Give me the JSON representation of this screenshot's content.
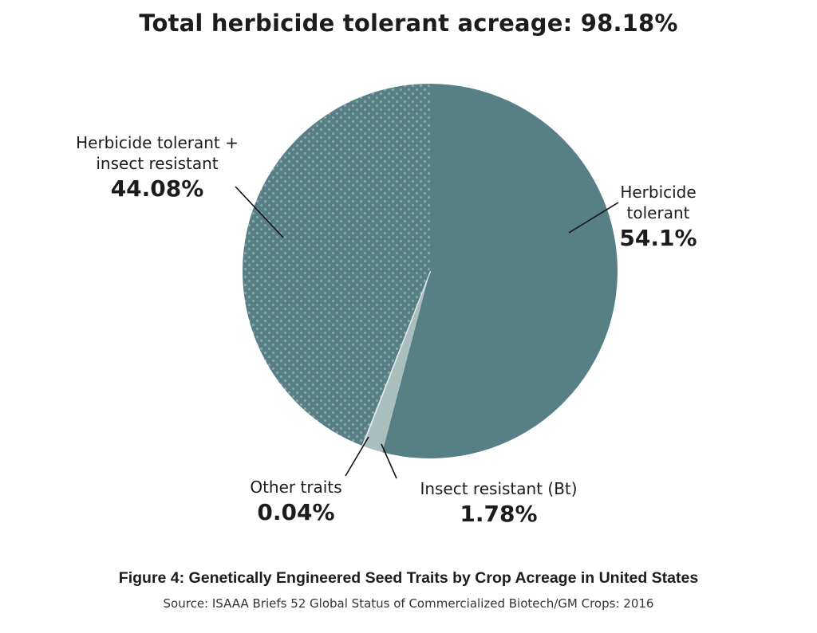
{
  "title": "Total herbicide tolerant acreage: 98.18%",
  "caption": "Figure 4: Genetically Engineered Seed Traits by Crop Acreage in United States",
  "source": "Source: ISAAA Briefs 52 Global Status of Commercialized Biotech/GM Crops: 2016",
  "chart_data": {
    "type": "pie",
    "title": "Total herbicide tolerant acreage: 98.18%",
    "slices": [
      {
        "label": "Herbicide tolerant",
        "value": 54.1,
        "value_label": "54.1%",
        "color": "#577f86",
        "pattern": "solid"
      },
      {
        "label": "Insect resistant (Bt)",
        "value": 1.78,
        "value_label": "1.78%",
        "color": "#a9bfbe",
        "pattern": "solid"
      },
      {
        "label": "Other traits",
        "value": 0.04,
        "value_label": "0.04%",
        "color": "#e6ece9",
        "pattern": "solid"
      },
      {
        "label": "Herbicide tolerant + insect resistant",
        "value": 44.08,
        "value_label": "44.08%",
        "color": "#577f86",
        "pattern": "dotted"
      }
    ],
    "start": "12 o'clock",
    "direction": "clockwise",
    "legend": "none (direct labels with leader lines)"
  },
  "labels": {
    "herbicide_tolerant": {
      "name": "Herbicide\ntolerant",
      "pct": "54.1%"
    },
    "ht_plus_ir": {
      "name": "Herbicide tolerant +\ninsect resistant",
      "pct": "44.08%"
    },
    "insect_resistant": {
      "name": "Insect resistant (Bt)",
      "pct": "1.78%"
    },
    "other_traits": {
      "name": "Other traits",
      "pct": "0.04%"
    }
  }
}
